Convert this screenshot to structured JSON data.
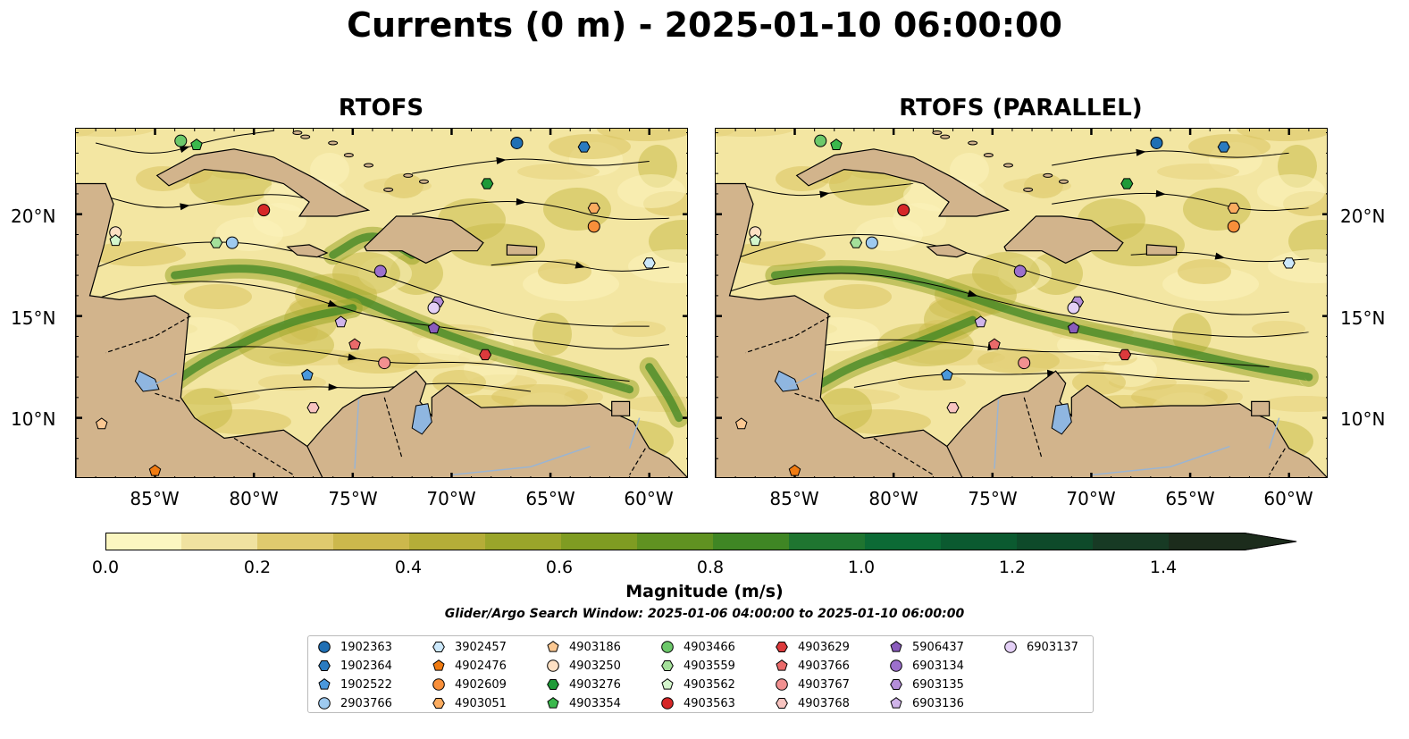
{
  "title": "Currents (0 m) - 2025-01-10 06:00:00",
  "panels": [
    {
      "title": "RTOFS"
    },
    {
      "title": "RTOFS (PARALLEL)"
    }
  ],
  "map_extent": {
    "lon": [
      -89,
      -58
    ],
    "lat": [
      7,
      24.2
    ]
  },
  "lat_labels": [
    "20°N",
    "15°N",
    "10°N"
  ],
  "lon_labels": [
    "85°W",
    "80°W",
    "75°W",
    "70°W",
    "65°W",
    "60°W"
  ],
  "colorbar": {
    "label": "Magnitude (m/s)",
    "ticks": [
      "0.0",
      "0.2",
      "0.4",
      "0.6",
      "0.8",
      "1.0",
      "1.2",
      "1.4"
    ],
    "colors": [
      "#fbf6c0",
      "#f0e2a0",
      "#dfca6e",
      "#ccb84c",
      "#b5ad38",
      "#9aa52a",
      "#7f9c22",
      "#609221",
      "#3f8624",
      "#1f7530",
      "#0c6a35",
      "#0b5a30",
      "#0e4a2a",
      "#173a24",
      "#1c2c1c"
    ]
  },
  "search_window": "Glider/Argo Search Window: 2025-01-06 04:00:00 to 2025-01-10 06:00:00",
  "legend": [
    {
      "label": "1902363",
      "shape": "circle",
      "color": "#1f6fb4"
    },
    {
      "label": "1902364",
      "shape": "hexagon",
      "color": "#2b7bc0"
    },
    {
      "label": "1902522",
      "shape": "pentagon",
      "color": "#4a98dc"
    },
    {
      "label": "2903766",
      "shape": "circle",
      "color": "#9ecaf0"
    },
    {
      "label": "3902457",
      "shape": "hexagon",
      "color": "#cce8fb"
    },
    {
      "label": "4902476",
      "shape": "pentagon",
      "color": "#f07b12"
    },
    {
      "label": "4902609",
      "shape": "circle",
      "color": "#f88f3a"
    },
    {
      "label": "4903051",
      "shape": "hexagon",
      "color": "#fbac60"
    },
    {
      "label": "4903186",
      "shape": "pentagon",
      "color": "#fbc892"
    },
    {
      "label": "4903250",
      "shape": "circle",
      "color": "#fde0c4"
    },
    {
      "label": "4903276",
      "shape": "hexagon",
      "color": "#1f9a38"
    },
    {
      "label": "4903354",
      "shape": "pentagon",
      "color": "#3ab84c"
    },
    {
      "label": "4903466",
      "shape": "circle",
      "color": "#6cc86a"
    },
    {
      "label": "4903559",
      "shape": "hexagon",
      "color": "#a4e09a"
    },
    {
      "label": "4903562",
      "shape": "pentagon",
      "color": "#d4f6cc"
    },
    {
      "label": "4903563",
      "shape": "circle",
      "color": "#d62728"
    },
    {
      "label": "4903629",
      "shape": "hexagon",
      "color": "#dc3a3c"
    },
    {
      "label": "4903766",
      "shape": "pentagon",
      "color": "#ea6a6a"
    },
    {
      "label": "4903767",
      "shape": "circle",
      "color": "#f29090"
    },
    {
      "label": "4903768",
      "shape": "hexagon",
      "color": "#f8c4c0"
    },
    {
      "label": "5906437",
      "shape": "pentagon",
      "color": "#8a5cbc"
    },
    {
      "label": "6903134",
      "shape": "circle",
      "color": "#9c70cc"
    },
    {
      "label": "6903135",
      "shape": "hexagon",
      "color": "#b48ed8"
    },
    {
      "label": "6903136",
      "shape": "pentagon",
      "color": "#d0b4ea"
    },
    {
      "label": "6903137",
      "shape": "circle",
      "color": "#e4d0f6"
    }
  ],
  "markers": [
    {
      "id": "1902363",
      "lon": -66.7,
      "lat": 23.5
    },
    {
      "id": "1902364",
      "lon": -63.3,
      "lat": 23.3
    },
    {
      "id": "1902522",
      "lon": -77.3,
      "lat": 12.1
    },
    {
      "id": "2903766",
      "lon": -81.1,
      "lat": 18.6
    },
    {
      "id": "3902457",
      "lon": -60.0,
      "lat": 17.6
    },
    {
      "id": "4902476",
      "lon": -85.0,
      "lat": 7.4
    },
    {
      "id": "4902609",
      "lon": -62.8,
      "lat": 19.4
    },
    {
      "id": "4903051",
      "lon": -62.8,
      "lat": 20.3
    },
    {
      "id": "4903186",
      "lon": -87.7,
      "lat": 9.7
    },
    {
      "id": "4903250",
      "lon": -87.0,
      "lat": 19.1
    },
    {
      "id": "4903276",
      "lon": -68.2,
      "lat": 21.5
    },
    {
      "id": "4903354",
      "lon": -82.9,
      "lat": 23.4
    },
    {
      "id": "4903466",
      "lon": -83.7,
      "lat": 23.6
    },
    {
      "id": "4903559",
      "lon": -81.9,
      "lat": 18.6
    },
    {
      "id": "4903562",
      "lon": -87.0,
      "lat": 18.7
    },
    {
      "id": "4903563",
      "lon": -79.5,
      "lat": 20.2
    },
    {
      "id": "4903629",
      "lon": -68.3,
      "lat": 13.1
    },
    {
      "id": "4903766",
      "lon": -74.9,
      "lat": 13.6
    },
    {
      "id": "4903767",
      "lon": -73.4,
      "lat": 12.7
    },
    {
      "id": "4903768",
      "lon": -77.0,
      "lat": 10.5
    },
    {
      "id": "5906437",
      "lon": -70.9,
      "lat": 14.4
    },
    {
      "id": "6903134",
      "lon": -73.6,
      "lat": 17.2
    },
    {
      "id": "6903135",
      "lon": -70.7,
      "lat": 15.7
    },
    {
      "id": "6903136",
      "lon": -75.6,
      "lat": 14.7
    },
    {
      "id": "6903137",
      "lon": -70.9,
      "lat": 15.4
    }
  ]
}
